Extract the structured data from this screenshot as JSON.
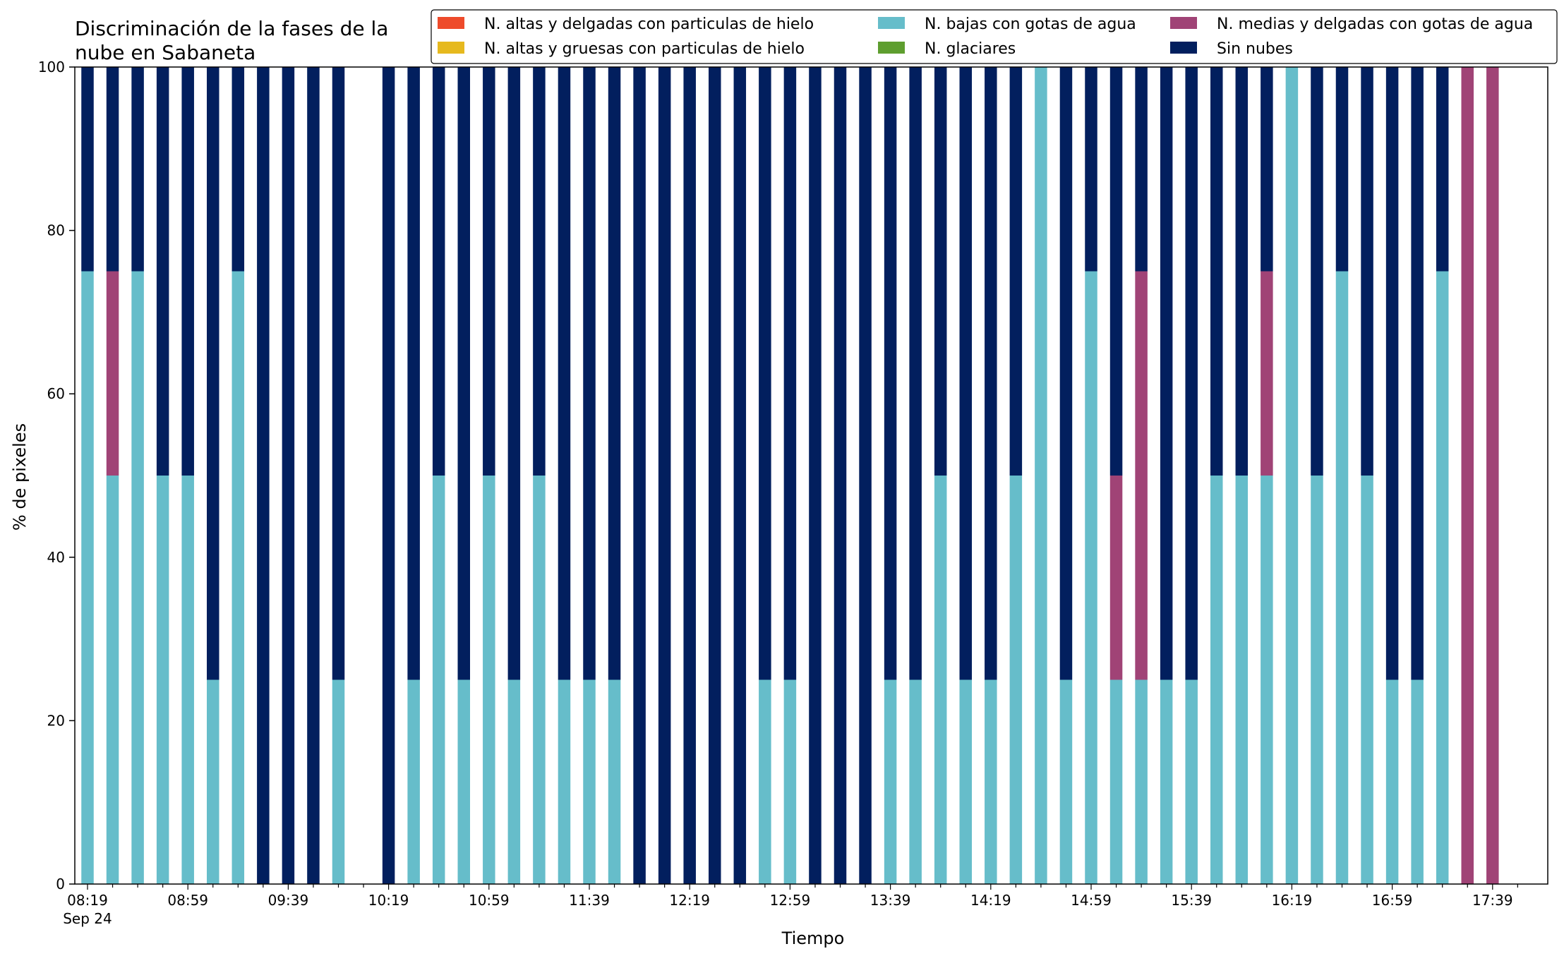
{
  "chart_data": {
    "type": "bar",
    "stacked": true,
    "title": "Discriminación de la fases de la\nnube en Sabaneta",
    "xlabel": "Tiempo",
    "ylabel": "% de pixeles",
    "ylim": [
      0,
      100
    ],
    "yticks": [
      0,
      20,
      40,
      60,
      80,
      100
    ],
    "legend_position": "top-right",
    "x_start_time": "08:19",
    "x_date_label": "Sep 24",
    "x_step_minutes": 10,
    "xtick_labels": [
      "08:19",
      "08:59",
      "09:39",
      "10:19",
      "10:59",
      "11:39",
      "12:19",
      "12:59",
      "13:39",
      "14:19",
      "14:59",
      "15:39",
      "16:19",
      "16:59",
      "17:39"
    ],
    "x": [
      "08:19",
      "08:29",
      "08:39",
      "08:49",
      "08:59",
      "09:09",
      "09:19",
      "09:29",
      "09:39",
      "09:49",
      "09:59",
      "10:09",
      "10:19",
      "10:29",
      "10:39",
      "10:49",
      "10:59",
      "11:09",
      "11:19",
      "11:29",
      "11:39",
      "11:49",
      "11:59",
      "12:09",
      "12:19",
      "12:29",
      "12:39",
      "12:49",
      "12:59",
      "13:09",
      "13:19",
      "13:29",
      "13:39",
      "13:49",
      "13:59",
      "14:09",
      "14:19",
      "14:29",
      "14:39",
      "14:49",
      "14:59",
      "15:09",
      "15:19",
      "15:29",
      "15:39",
      "15:49",
      "15:59",
      "16:09",
      "16:19",
      "16:29",
      "16:39",
      "16:49",
      "16:59",
      "17:09",
      "17:19",
      "17:29",
      "17:39",
      "17:49"
    ],
    "series": [
      {
        "name": "N. altas y delgadas con particulas de hielo",
        "color": "#EE4B2B",
        "values": [
          0,
          0,
          0,
          0,
          0,
          0,
          0,
          0,
          0,
          0,
          0,
          0,
          0,
          0,
          0,
          0,
          0,
          0,
          0,
          0,
          0,
          0,
          0,
          0,
          0,
          0,
          0,
          0,
          0,
          0,
          0,
          0,
          0,
          0,
          0,
          0,
          0,
          0,
          0,
          0,
          0,
          0,
          0,
          0,
          0,
          0,
          0,
          0,
          0,
          0,
          0,
          0,
          0,
          0,
          0,
          0,
          0,
          0
        ]
      },
      {
        "name": "N. altas y gruesas con particulas de hielo",
        "color": "#E6B91E",
        "values": [
          0,
          0,
          0,
          0,
          0,
          0,
          0,
          0,
          0,
          0,
          0,
          0,
          0,
          0,
          0,
          0,
          0,
          0,
          0,
          0,
          0,
          0,
          0,
          0,
          0,
          0,
          0,
          0,
          0,
          0,
          0,
          0,
          0,
          0,
          0,
          0,
          0,
          0,
          0,
          0,
          0,
          0,
          0,
          0,
          0,
          0,
          0,
          0,
          0,
          0,
          0,
          0,
          0,
          0,
          0,
          0,
          0,
          0
        ]
      },
      {
        "name": "N. bajas con gotas de agua",
        "color": "#66BDCA",
        "values": [
          75,
          50,
          75,
          50,
          50,
          25,
          75,
          0,
          0,
          0,
          25,
          0,
          0,
          25,
          50,
          25,
          50,
          25,
          50,
          25,
          25,
          25,
          0,
          0,
          0,
          0,
          0,
          25,
          25,
          0,
          0,
          0,
          25,
          25,
          50,
          25,
          25,
          50,
          100,
          25,
          75,
          25,
          25,
          25,
          25,
          50,
          50,
          50,
          100,
          50,
          75,
          50,
          25,
          25,
          75,
          0,
          0,
          0
        ]
      },
      {
        "name": "N. glaciares",
        "color": "#5E9E2F",
        "values": [
          0,
          0,
          0,
          0,
          0,
          0,
          0,
          0,
          0,
          0,
          0,
          0,
          0,
          0,
          0,
          0,
          0,
          0,
          0,
          0,
          0,
          0,
          0,
          0,
          0,
          0,
          0,
          0,
          0,
          0,
          0,
          0,
          0,
          0,
          0,
          0,
          0,
          0,
          0,
          0,
          0,
          0,
          0,
          0,
          0,
          0,
          0,
          0,
          0,
          0,
          0,
          0,
          0,
          0,
          0,
          0,
          0,
          0
        ]
      },
      {
        "name": "N. medias y delgadas con gotas de agua",
        "color": "#A04376",
        "values": [
          0,
          25,
          0,
          0,
          0,
          0,
          0,
          0,
          0,
          0,
          0,
          0,
          0,
          0,
          0,
          0,
          0,
          0,
          0,
          0,
          0,
          0,
          0,
          0,
          0,
          0,
          0,
          0,
          0,
          0,
          0,
          0,
          0,
          0,
          0,
          0,
          0,
          0,
          0,
          0,
          0,
          25,
          50,
          0,
          0,
          0,
          0,
          25,
          0,
          0,
          0,
          0,
          0,
          0,
          0,
          100,
          100,
          0
        ]
      },
      {
        "name": "Sin nubes",
        "color": "#021F5E",
        "values": [
          25,
          25,
          25,
          50,
          50,
          75,
          25,
          100,
          100,
          100,
          75,
          0,
          100,
          75,
          50,
          75,
          50,
          75,
          50,
          75,
          75,
          75,
          100,
          100,
          100,
          100,
          100,
          75,
          75,
          100,
          100,
          100,
          75,
          75,
          50,
          75,
          75,
          50,
          0,
          75,
          25,
          50,
          25,
          75,
          75,
          50,
          50,
          25,
          0,
          50,
          25,
          50,
          75,
          75,
          25,
          0,
          0,
          0
        ]
      }
    ]
  }
}
